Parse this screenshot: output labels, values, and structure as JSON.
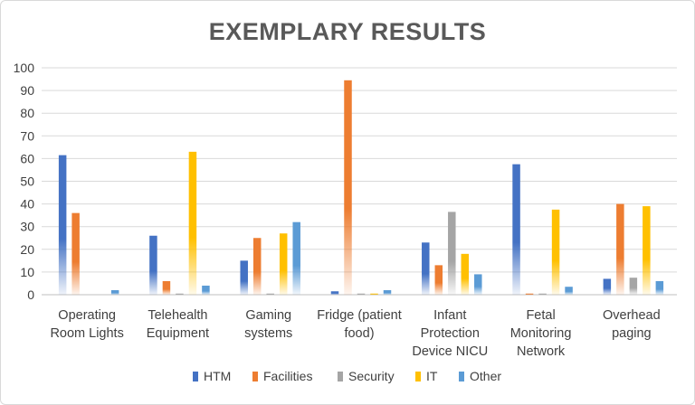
{
  "chart_data": {
    "type": "bar",
    "title": "EXEMPLARY RESULTS",
    "categories": [
      [
        "Operating",
        "Room Lights"
      ],
      [
        "Telehealth",
        "Equipment"
      ],
      [
        "Gaming",
        "systems"
      ],
      [
        "Fridge (patient",
        "food)"
      ],
      [
        "Infant",
        "Protection",
        "Device NICU"
      ],
      [
        "Fetal",
        "Monitoring",
        "Network"
      ],
      [
        "Overhead",
        "paging"
      ]
    ],
    "series": [
      {
        "name": "HTM",
        "color": "#4472c4",
        "values": [
          61.5,
          26,
          15,
          1.5,
          23,
          57.5,
          7
        ]
      },
      {
        "name": "Facilities",
        "color": "#ed7d31",
        "values": [
          36,
          6,
          25,
          94.5,
          13,
          0.5,
          40
        ]
      },
      {
        "name": "Security",
        "color": "#a5a5a5",
        "values": [
          0,
          0.5,
          0.5,
          0.5,
          36.5,
          0.5,
          7.5
        ]
      },
      {
        "name": "IT",
        "color": "#ffc000",
        "values": [
          0,
          63,
          27,
          0.5,
          18,
          37.5,
          39
        ]
      },
      {
        "name": "Other",
        "color": "#5b9bd5",
        "values": [
          2,
          4,
          32,
          2,
          9,
          3.5,
          6
        ]
      }
    ],
    "ylim": [
      0,
      100
    ],
    "yticks": [
      "0",
      "10",
      "20",
      "30",
      "40",
      "50",
      "60",
      "70",
      "80",
      "90",
      "100"
    ],
    "grid": true,
    "legend_position": "bottom"
  }
}
